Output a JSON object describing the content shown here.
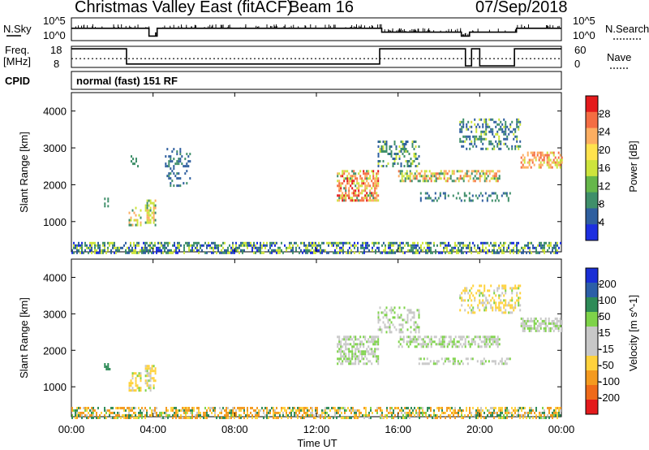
{
  "header": {
    "title": "Christmas Valley East (fitACF)",
    "beam": "Beam 16",
    "date": "07/Sep/2018"
  },
  "nsky_panel": {
    "left_label": "N.Sky",
    "left_ticks": [
      "10^5",
      "10^0"
    ],
    "right_ticks": [
      "10^5",
      "10^0"
    ],
    "right_label": "N.Search"
  },
  "freq_panel": {
    "left_label_line1": "Freq.",
    "left_label_line2": "[MHz]",
    "left_ticks": [
      "18",
      "8"
    ],
    "right_ticks": [
      "60",
      "0"
    ],
    "right_label": "Nave"
  },
  "cpid_panel": {
    "label": "CPID",
    "program": "normal (fast) 151 RF"
  },
  "x_axis": {
    "label": "Time UT",
    "ticks": [
      "00:00",
      "04:00",
      "08:00",
      "12:00",
      "16:00",
      "20:00",
      "00:00"
    ]
  },
  "power_colorbar": {
    "label": "Power [dB]",
    "ticks": [
      "28",
      "24",
      "20",
      "16",
      "12",
      "8",
      "4"
    ],
    "colors": [
      "#e41a1c",
      "#f46d43",
      "#fdae61",
      "#ffe34d",
      "#cde43c",
      "#66b74a",
      "#3f8f6a",
      "#2f5f9f",
      "#1d2fe0"
    ]
  },
  "velocity_colorbar": {
    "label": "Velocity [m s^-1]",
    "ticks": [
      "200",
      "100",
      "50",
      "15",
      "-15",
      "-50",
      "-100",
      "-200"
    ],
    "colors": [
      "#1a2fd6",
      "#2c5fa8",
      "#2e8b57",
      "#7ed349",
      "#c8c8c8",
      "#c8c8c8",
      "#ffd23c",
      "#f49a1f",
      "#ef6a19",
      "#e41a1c"
    ]
  },
  "chart_data": [
    {
      "type": "line",
      "title": "N.Sky",
      "x_range_hours": [
        0,
        24
      ],
      "series": [
        {
          "name": "N.Sky",
          "x": [
            0,
            3,
            3.8,
            4.2,
            5,
            15,
            15.2,
            18.9,
            19.1,
            19.5,
            20,
            21.6,
            21.8,
            24
          ],
          "y_level": [
            0.55,
            0.55,
            0.15,
            0.55,
            0.55,
            0.55,
            0.35,
            0.35,
            0.15,
            0.35,
            0.35,
            0.35,
            0.55,
            0.55
          ]
        }
      ]
    },
    {
      "type": "line",
      "title": "Freq.",
      "x_range_hours": [
        0,
        24
      ],
      "series": [
        {
          "name": "Freq.",
          "x": [
            0,
            2.6,
            2.7,
            4.5,
            15,
            15.1,
            19.1,
            19.3,
            19.6,
            20,
            21.7,
            22,
            24
          ],
          "y": [
            17.5,
            17.5,
            9,
            9,
            9,
            17.5,
            17.5,
            8,
            17.5,
            8,
            17.5,
            17.5,
            17.5
          ]
        },
        {
          "name": "Nave",
          "x": [
            0,
            24
          ],
          "y": [
            24,
            24
          ]
        }
      ]
    },
    {
      "type": "heatmap",
      "title": "Power [dB]",
      "x_range_hours": [
        0,
        24
      ],
      "y_range_km": [
        180,
        4500
      ],
      "y_ticks": [
        1000,
        2000,
        3000,
        4000
      ],
      "echo_regions": [
        {
          "t0": 0,
          "t1": 24,
          "r0": 180,
          "r1": 450,
          "value_range": [
            4,
            18
          ],
          "density": 0.55
        },
        {
          "t0": 1.6,
          "t1": 1.9,
          "r0": 1450,
          "r1": 1650,
          "value_range": [
            10,
            14
          ],
          "density": 0.6
        },
        {
          "t0": 2.8,
          "t1": 3.4,
          "r0": 900,
          "r1": 1400,
          "value_range": [
            10,
            20
          ],
          "density": 0.5
        },
        {
          "t0": 3.6,
          "t1": 4.1,
          "r0": 900,
          "r1": 1600,
          "value_range": [
            10,
            22
          ],
          "density": 0.55
        },
        {
          "t0": 2.9,
          "t1": 3.3,
          "r0": 2500,
          "r1": 2800,
          "value_range": [
            10,
            14
          ],
          "density": 0.3
        },
        {
          "t0": 4.5,
          "t1": 5.8,
          "r0": 2000,
          "r1": 3000,
          "value_range": [
            6,
            12
          ],
          "density": 0.25
        },
        {
          "t0": 13,
          "t1": 15,
          "r0": 1600,
          "r1": 2400,
          "value_range": [
            12,
            28
          ],
          "density": 0.6
        },
        {
          "t0": 15,
          "t1": 17,
          "r0": 2500,
          "r1": 3200,
          "value_range": [
            8,
            16
          ],
          "density": 0.35
        },
        {
          "t0": 16,
          "t1": 21,
          "r0": 2100,
          "r1": 2400,
          "value_range": [
            10,
            24
          ],
          "density": 0.55
        },
        {
          "t0": 17,
          "t1": 21.5,
          "r0": 1600,
          "r1": 1800,
          "value_range": [
            6,
            14
          ],
          "density": 0.3
        },
        {
          "t0": 19,
          "t1": 22,
          "r0": 3000,
          "r1": 3800,
          "value_range": [
            6,
            16
          ],
          "density": 0.35
        },
        {
          "t0": 22,
          "t1": 24,
          "r0": 2500,
          "r1": 2900,
          "value_range": [
            16,
            26
          ],
          "density": 0.6
        }
      ]
    },
    {
      "type": "heatmap",
      "title": "Velocity [m s^-1]",
      "x_range_hours": [
        0,
        24
      ],
      "y_range_km": [
        180,
        4500
      ],
      "y_ticks": [
        1000,
        2000,
        3000,
        4000
      ],
      "echo_regions": [
        {
          "t0": 0,
          "t1": 24,
          "r0": 180,
          "r1": 450,
          "value_range": [
            -100,
            50
          ],
          "density": 0.55
        },
        {
          "t0": 1.6,
          "t1": 1.9,
          "r0": 1450,
          "r1": 1650,
          "value_range": [
            15,
            50
          ],
          "density": 0.6
        },
        {
          "t0": 2.8,
          "t1": 3.4,
          "r0": 900,
          "r1": 1400,
          "value_range": [
            -50,
            15
          ],
          "density": 0.5
        },
        {
          "t0": 3.6,
          "t1": 4.1,
          "r0": 900,
          "r1": 1600,
          "value_range": [
            -50,
            15
          ],
          "density": 0.55
        },
        {
          "t0": 13,
          "t1": 15,
          "r0": 1600,
          "r1": 2400,
          "value_range": [
            -15,
            15
          ],
          "density": 0.6
        },
        {
          "t0": 15,
          "t1": 17,
          "r0": 2500,
          "r1": 3200,
          "value_range": [
            -15,
            15
          ],
          "density": 0.35
        },
        {
          "t0": 16,
          "t1": 21,
          "r0": 2100,
          "r1": 2400,
          "value_range": [
            -15,
            15
          ],
          "density": 0.55
        },
        {
          "t0": 17,
          "t1": 21.5,
          "r0": 1600,
          "r1": 1800,
          "value_range": [
            -15,
            15
          ],
          "density": 0.3
        },
        {
          "t0": 19,
          "t1": 22,
          "r0": 3000,
          "r1": 3800,
          "value_range": [
            -50,
            15
          ],
          "density": 0.35
        },
        {
          "t0": 22,
          "t1": 24,
          "r0": 2500,
          "r1": 2900,
          "value_range": [
            -15,
            15
          ],
          "density": 0.6
        }
      ]
    }
  ]
}
